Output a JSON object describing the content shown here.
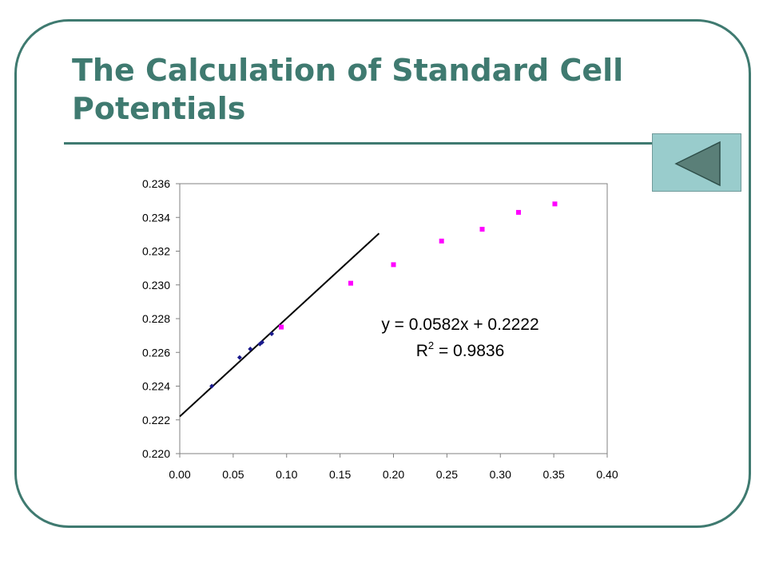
{
  "slide": {
    "title": "The Calculation of Standard Cell Potentials",
    "nav_button_icon": "left-triangle-icon",
    "accent_color": "#3f7a70",
    "button_color": "#99cccc"
  },
  "chart_data": {
    "type": "scatter",
    "title": "",
    "xlabel": "",
    "ylabel": "",
    "xlim": [
      0,
      0.4
    ],
    "ylim": [
      0.22,
      0.236
    ],
    "x_ticks": [
      "0.00",
      "0.05",
      "0.10",
      "0.15",
      "0.20",
      "0.25",
      "0.30",
      "0.35",
      "0.40"
    ],
    "y_ticks": [
      "0.220",
      "0.222",
      "0.224",
      "0.226",
      "0.228",
      "0.230",
      "0.232",
      "0.234",
      "0.236"
    ],
    "grid": false,
    "series": [
      {
        "color": "#1a1a8c",
        "marker": "diamond",
        "points": [
          [
            0.03,
            0.224
          ],
          [
            0.056,
            0.2257
          ],
          [
            0.066,
            0.2262
          ],
          [
            0.075,
            0.2265
          ],
          [
            0.077,
            0.2266
          ],
          [
            0.086,
            0.2271
          ]
        ]
      },
      {
        "color": "#ff00ff",
        "marker": "square",
        "points": [
          [
            0.095,
            0.2275
          ],
          [
            0.16,
            0.2301
          ],
          [
            0.2,
            0.2312
          ],
          [
            0.245,
            0.2326
          ],
          [
            0.283,
            0.2333
          ],
          [
            0.317,
            0.2343
          ],
          [
            0.351,
            0.2348
          ]
        ]
      }
    ],
    "trendline": {
      "slope": 0.0582,
      "intercept": 0.2222,
      "x_range": [
        0,
        0.1865
      ],
      "equation": "y = 0.0582x + 0.2222",
      "r2_prefix": "R",
      "r2_sup": "2",
      "r2_value": " = 0.9836"
    }
  }
}
